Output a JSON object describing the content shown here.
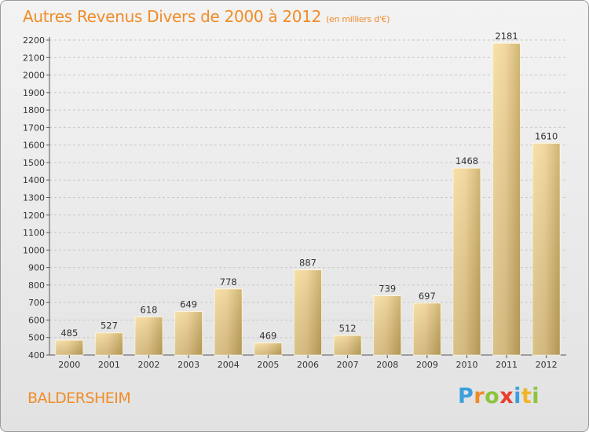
{
  "chart_data": {
    "type": "bar",
    "title": "Autres Revenus Divers de 2000 à 2012",
    "subtitle": "(en milliers d'€)",
    "categories": [
      "2000",
      "2001",
      "2002",
      "2003",
      "2004",
      "2005",
      "2006",
      "2007",
      "2008",
      "2009",
      "2010",
      "2011",
      "2012"
    ],
    "values": [
      485,
      527,
      618,
      649,
      778,
      469,
      887,
      512,
      739,
      697,
      1468,
      2181,
      1610
    ],
    "ylim": [
      400,
      2200
    ],
    "yticks": [
      400,
      500,
      600,
      700,
      800,
      900,
      1000,
      1100,
      1200,
      1300,
      1400,
      1500,
      1600,
      1700,
      1800,
      1900,
      2000,
      2100,
      2200
    ],
    "grid": true,
    "bar_color": "#e6c878",
    "title_color": "#f08c28"
  },
  "location": "BALDERSHEIM",
  "logo": {
    "text": "Proxiti",
    "letters": [
      {
        "ch": "P",
        "color": "#3aa0dc"
      },
      {
        "ch": "r",
        "color": "#f08c28"
      },
      {
        "ch": "o",
        "color": "#8cc43c"
      },
      {
        "ch": "x",
        "color": "#e8402c"
      },
      {
        "ch": "i",
        "color": "#3aa0dc"
      },
      {
        "ch": "t",
        "color": "#f0b428"
      },
      {
        "ch": "i",
        "color": "#8cc43c"
      }
    ]
  }
}
